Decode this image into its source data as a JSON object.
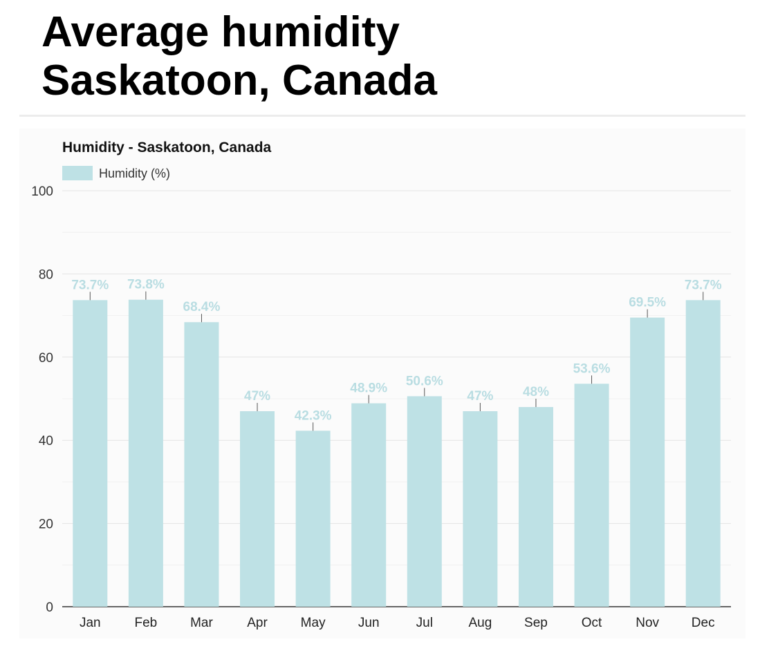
{
  "page": {
    "title_line1": "Average humidity",
    "title_line2": "Saskatoon, Canada"
  },
  "chart_data": {
    "type": "bar",
    "title": "Humidity - Saskatoon, Canada",
    "categories": [
      "Jan",
      "Feb",
      "Mar",
      "Apr",
      "May",
      "Jun",
      "Jul",
      "Aug",
      "Sep",
      "Oct",
      "Nov",
      "Dec"
    ],
    "series": [
      {
        "name": "Humidity (%)",
        "values": [
          73.7,
          73.8,
          68.4,
          47,
          42.3,
          48.9,
          50.6,
          47,
          48,
          53.6,
          69.5,
          73.7
        ],
        "labels": [
          "73.7%",
          "73.8%",
          "68.4%",
          "47%",
          "42.3%",
          "48.9%",
          "50.6%",
          "47%",
          "48%",
          "53.6%",
          "69.5%",
          "73.7%"
        ],
        "color": "#bee1e5"
      }
    ],
    "ylim": [
      0,
      100
    ],
    "yticks": [
      0,
      20,
      40,
      60,
      80,
      100
    ],
    "grid": true,
    "legend": "top-left",
    "label_color": "#b9dde2"
  }
}
